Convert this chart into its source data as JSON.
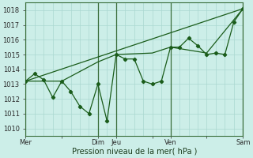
{
  "xlabel": "Pression niveau de la mer( hPa )",
  "bg_color": "#cceee8",
  "grid_color": "#aad8d0",
  "line_color": "#1a5c1a",
  "vline_color": "#3a6e3a",
  "ylim": [
    1009.5,
    1018.5
  ],
  "yticks": [
    1010,
    1011,
    1012,
    1013,
    1014,
    1015,
    1016,
    1017,
    1018
  ],
  "xtick_labels": [
    "Mer",
    "",
    "Dim",
    "Jeu",
    "",
    "Ven",
    "",
    "Sam"
  ],
  "xtick_positions": [
    0,
    0.167,
    0.333,
    0.417,
    0.583,
    0.667,
    0.833,
    1.0
  ],
  "vline_positions": [
    0.0,
    0.333,
    0.417,
    0.667,
    1.0
  ],
  "series1_x": [
    0.0,
    0.042,
    0.083,
    0.125,
    0.167,
    0.208,
    0.25,
    0.292,
    0.333,
    0.375,
    0.417,
    0.458,
    0.5,
    0.542,
    0.583,
    0.625,
    0.667,
    0.708,
    0.75,
    0.792,
    0.833,
    0.875,
    0.917,
    0.958,
    1.0
  ],
  "series1_y": [
    1013.2,
    1013.7,
    1013.3,
    1012.1,
    1013.2,
    1012.5,
    1011.5,
    1011.0,
    1013.0,
    1010.5,
    1015.0,
    1014.7,
    1014.7,
    1013.2,
    1013.0,
    1013.2,
    1015.5,
    1015.5,
    1016.1,
    1015.6,
    1015.0,
    1015.1,
    1015.0,
    1017.2,
    1018.1
  ],
  "series2_x": [
    0.0,
    0.167,
    0.333,
    0.417,
    0.583,
    0.667,
    0.833,
    1.0
  ],
  "series2_y": [
    1013.2,
    1013.2,
    1014.5,
    1015.0,
    1015.1,
    1015.5,
    1015.1,
    1018.1
  ],
  "series3_x": [
    0.0,
    1.0
  ],
  "series3_y": [
    1013.2,
    1018.1
  ]
}
